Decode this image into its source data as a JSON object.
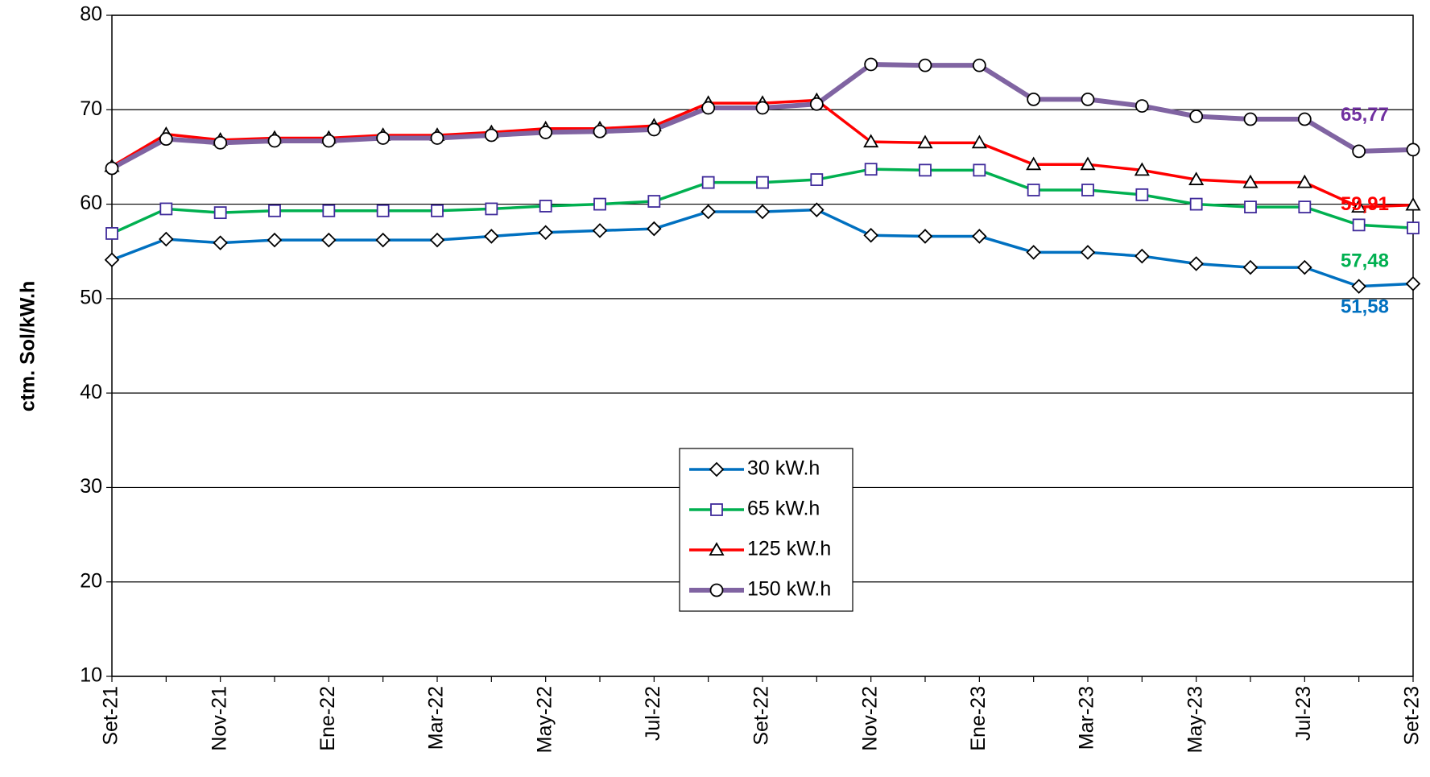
{
  "chart_data": {
    "type": "line",
    "ylabel": "ctm. Sol/kW.h",
    "categories": [
      "Set-21",
      null,
      "Nov-21",
      null,
      "Ene-22",
      null,
      "Mar-22",
      null,
      "May-22",
      null,
      "Jul-22",
      null,
      "Set-22",
      null,
      "Nov-22",
      null,
      "Ene-23",
      null,
      "Mar-23",
      null,
      "May-23",
      null,
      "Jul-23",
      null,
      "Set-23"
    ],
    "ylim": [
      10,
      80
    ],
    "yticks": [
      10,
      20,
      30,
      40,
      50,
      60,
      70,
      80
    ],
    "grid": true,
    "legend": "center",
    "series": [
      {
        "name": "30 kW.h",
        "color": "#0070c0",
        "marker": "diamond",
        "marker_color": "#000000",
        "label_color": "#0070c0",
        "values": [
          54.1,
          56.3,
          55.9,
          56.2,
          56.2,
          56.2,
          56.2,
          56.6,
          57.0,
          57.2,
          57.4,
          59.2,
          59.2,
          59.4,
          56.7,
          56.6,
          56.6,
          54.9,
          54.9,
          54.5,
          53.7,
          53.3,
          53.3,
          51.3,
          51.58
        ],
        "value_labels": [
          null,
          null,
          null,
          null,
          null,
          null,
          null,
          null,
          null,
          null,
          null,
          null,
          null,
          null,
          null,
          null,
          null,
          null,
          null,
          null,
          null,
          null,
          null,
          null,
          "51,58"
        ]
      },
      {
        "name": "65 kW.h",
        "color": "#00b050",
        "marker": "square",
        "marker_color": "#3f2a9a",
        "label_color": "#00b050",
        "values": [
          56.9,
          59.5,
          59.1,
          59.3,
          59.3,
          59.3,
          59.3,
          59.5,
          59.8,
          60.0,
          60.3,
          62.3,
          62.3,
          62.6,
          63.7,
          63.6,
          63.6,
          61.5,
          61.5,
          61.0,
          60.0,
          59.7,
          59.7,
          57.8,
          57.48
        ],
        "value_labels": [
          null,
          null,
          null,
          null,
          null,
          null,
          null,
          null,
          null,
          null,
          null,
          null,
          null,
          null,
          null,
          null,
          null,
          null,
          null,
          null,
          null,
          null,
          null,
          null,
          "57,48"
        ]
      },
      {
        "name": "125 kW.h",
        "color": "#ff0000",
        "marker": "triangle",
        "marker_color": "#000000",
        "label_color": "#ff0000",
        "values": [
          64.0,
          67.4,
          66.8,
          67.0,
          67.0,
          67.3,
          67.3,
          67.6,
          68.0,
          68.0,
          68.3,
          70.7,
          70.7,
          71.0,
          66.6,
          66.5,
          66.5,
          64.2,
          64.2,
          63.6,
          62.6,
          62.3,
          62.3,
          59.7,
          59.91
        ],
        "value_labels": [
          null,
          null,
          null,
          null,
          null,
          null,
          null,
          null,
          null,
          null,
          null,
          null,
          null,
          null,
          null,
          null,
          null,
          null,
          null,
          null,
          null,
          null,
          null,
          null,
          "59,91"
        ]
      },
      {
        "name": "150 kW.h",
        "color": "#8064a2",
        "marker": "circle",
        "marker_color": "#000000",
        "label_color": "#7030a0",
        "values": [
          63.8,
          66.9,
          66.5,
          66.7,
          66.7,
          67.0,
          67.0,
          67.3,
          67.6,
          67.7,
          67.9,
          70.2,
          70.2,
          70.6,
          74.8,
          74.7,
          74.7,
          71.1,
          71.1,
          70.4,
          69.3,
          69.0,
          69.0,
          65.6,
          65.77
        ],
        "value_labels": [
          null,
          null,
          null,
          null,
          null,
          null,
          null,
          null,
          null,
          null,
          null,
          null,
          null,
          null,
          null,
          null,
          null,
          null,
          null,
          null,
          null,
          null,
          null,
          null,
          "65,77"
        ]
      }
    ]
  }
}
